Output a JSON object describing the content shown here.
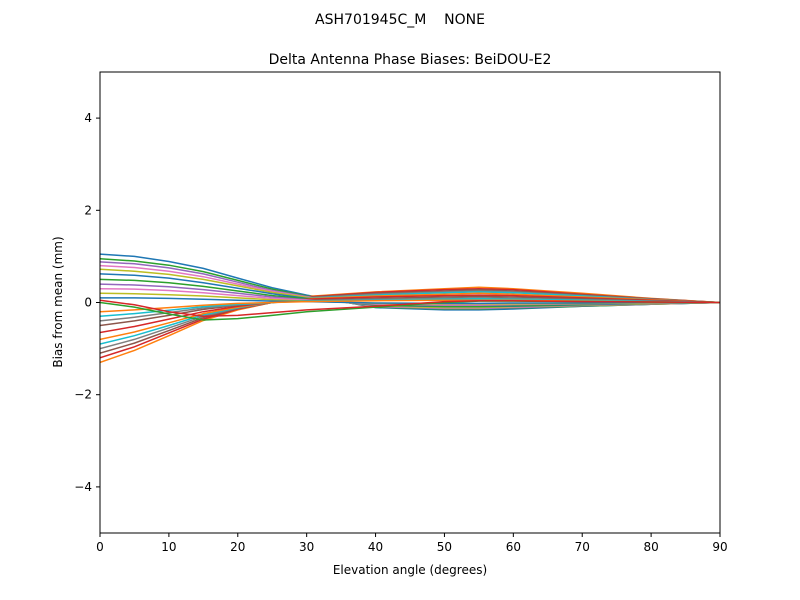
{
  "chart_data": {
    "type": "line",
    "suptitle": "ASH701945C_M    NONE",
    "title": "Delta Antenna Phase Biases: BeiDOU-E2",
    "xlabel": "Elevation angle (degrees)",
    "ylabel": "Bias from mean (mm)",
    "xlim": [
      0,
      90
    ],
    "ylim": [
      -5,
      5
    ],
    "xticks": [
      0,
      10,
      20,
      30,
      40,
      50,
      60,
      70,
      80,
      90
    ],
    "xtick_labels": [
      "0",
      "10",
      "20",
      "30",
      "40",
      "50",
      "60",
      "70",
      "80",
      "90"
    ],
    "yticks": [
      -4,
      -2,
      0,
      2,
      4
    ],
    "ytick_labels": [
      "−4",
      "−2",
      "0",
      "2",
      "4"
    ],
    "grid": false,
    "colors": [
      "#1f77b4",
      "#ff7f0e",
      "#2ca02c",
      "#d62728",
      "#9467bd",
      "#8c564b",
      "#e377c2",
      "#7f7f7f",
      "#bcbd22",
      "#17becf"
    ],
    "x": [
      0,
      5,
      10,
      15,
      20,
      25,
      30,
      40,
      50,
      55,
      60,
      70,
      80,
      90
    ],
    "series": [
      {
        "values": [
          1.05,
          1.0,
          0.89,
          0.74,
          0.53,
          0.32,
          0.16,
          -0.11,
          -0.16,
          -0.16,
          -0.14,
          -0.08,
          -0.04,
          0
        ]
      },
      {
        "values": [
          -1.3,
          -1.04,
          -0.72,
          -0.39,
          -0.16,
          0,
          0.13,
          0.23,
          0.3,
          0.33,
          0.3,
          0.2,
          0.09,
          0
        ]
      },
      {
        "values": [
          0.95,
          0.9,
          0.81,
          0.67,
          0.48,
          0.29,
          0.14,
          -0.1,
          -0.14,
          -0.14,
          -0.12,
          -0.08,
          -0.04,
          0
        ]
      },
      {
        "values": [
          -1.2,
          -0.96,
          -0.66,
          -0.36,
          -0.14,
          0,
          0.12,
          0.22,
          0.28,
          0.3,
          0.28,
          0.18,
          0.08,
          0
        ]
      },
      {
        "values": [
          0.88,
          0.84,
          0.75,
          0.62,
          0.44,
          0.26,
          0.13,
          -0.09,
          -0.13,
          -0.13,
          -0.11,
          -0.07,
          -0.04,
          0
        ]
      },
      {
        "values": [
          -1.1,
          -0.88,
          -0.61,
          -0.33,
          -0.13,
          0,
          0.11,
          0.2,
          0.25,
          0.28,
          0.25,
          0.17,
          0.08,
          0
        ]
      },
      {
        "values": [
          0.8,
          0.76,
          0.68,
          0.56,
          0.4,
          0.24,
          0.12,
          -0.08,
          -0.12,
          -0.12,
          -0.1,
          -0.06,
          -0.03,
          0
        ]
      },
      {
        "values": [
          -1.0,
          -0.8,
          -0.55,
          -0.3,
          -0.12,
          0,
          0.1,
          0.18,
          0.23,
          0.25,
          0.23,
          0.15,
          0.07,
          0
        ]
      },
      {
        "values": [
          0.72,
          0.68,
          0.61,
          0.5,
          0.36,
          0.22,
          0.11,
          -0.07,
          -0.11,
          -0.11,
          -0.09,
          -0.06,
          -0.03,
          0
        ]
      },
      {
        "values": [
          -0.9,
          -0.72,
          -0.5,
          -0.27,
          -0.11,
          0,
          0.09,
          0.16,
          0.21,
          0.23,
          0.21,
          0.14,
          0.06,
          0
        ]
      },
      {
        "values": [
          0.62,
          0.59,
          0.53,
          0.43,
          0.31,
          0.19,
          0.09,
          -0.06,
          -0.09,
          -0.09,
          -0.08,
          -0.05,
          -0.02,
          0
        ]
      },
      {
        "values": [
          -0.8,
          -0.64,
          -0.44,
          -0.24,
          -0.1,
          0,
          0.08,
          0.14,
          0.18,
          0.2,
          0.18,
          0.12,
          0.06,
          0
        ]
      },
      {
        "values": [
          0.5,
          0.48,
          0.43,
          0.35,
          0.25,
          0.15,
          0.08,
          -0.05,
          -0.08,
          -0.08,
          -0.07,
          -0.04,
          -0.02,
          0
        ]
      },
      {
        "values": [
          -0.65,
          -0.52,
          -0.36,
          -0.2,
          -0.08,
          0,
          0.07,
          0.12,
          0.15,
          0.16,
          0.15,
          0.1,
          0.05,
          0
        ]
      },
      {
        "values": [
          0.4,
          0.38,
          0.34,
          0.28,
          0.2,
          0.12,
          0.06,
          -0.04,
          -0.06,
          -0.06,
          -0.05,
          -0.03,
          -0.02,
          0
        ]
      },
      {
        "values": [
          -0.5,
          -0.4,
          -0.28,
          -0.15,
          -0.06,
          0,
          0.05,
          0.09,
          0.12,
          0.13,
          0.12,
          0.08,
          0.04,
          0
        ]
      },
      {
        "values": [
          0.3,
          0.29,
          0.26,
          0.21,
          0.15,
          0.09,
          0.05,
          -0.03,
          -0.05,
          -0.05,
          -0.04,
          -0.02,
          -0.01,
          0
        ]
      },
      {
        "values": [
          -0.4,
          -0.32,
          -0.22,
          -0.12,
          -0.05,
          0,
          0.04,
          0.07,
          0.09,
          0.1,
          0.09,
          0.06,
          0.03,
          0
        ]
      },
      {
        "values": [
          0.2,
          0.19,
          0.17,
          0.14,
          0.1,
          0.06,
          0.03,
          -0.02,
          -0.03,
          -0.03,
          -0.03,
          -0.02,
          -0.01,
          0
        ]
      },
      {
        "values": [
          -0.3,
          -0.24,
          -0.17,
          -0.09,
          -0.04,
          0,
          0.03,
          0.05,
          0.07,
          0.08,
          0.07,
          0.05,
          0.02,
          0
        ]
      },
      {
        "values": [
          0.1,
          0.1,
          0.09,
          0.07,
          0.05,
          0.03,
          0.02,
          -0.01,
          -0.02,
          -0.02,
          -0.01,
          -0.01,
          0,
          0
        ]
      },
      {
        "values": [
          -0.2,
          -0.16,
          -0.11,
          -0.06,
          -0.02,
          0,
          0.02,
          0.04,
          0.05,
          0.05,
          0.05,
          0.03,
          0.01,
          0
        ]
      },
      {
        "values": [
          0,
          -0.1,
          -0.25,
          -0.38,
          -0.35,
          -0.28,
          -0.2,
          -0.1,
          0,
          0.03,
          0.03,
          0.02,
          0.01,
          0
        ]
      },
      {
        "values": [
          0.05,
          -0.05,
          -0.2,
          -0.3,
          -0.28,
          -0.22,
          -0.16,
          -0.08,
          0.02,
          0.04,
          0.04,
          0.02,
          0.01,
          0
        ]
      }
    ]
  }
}
